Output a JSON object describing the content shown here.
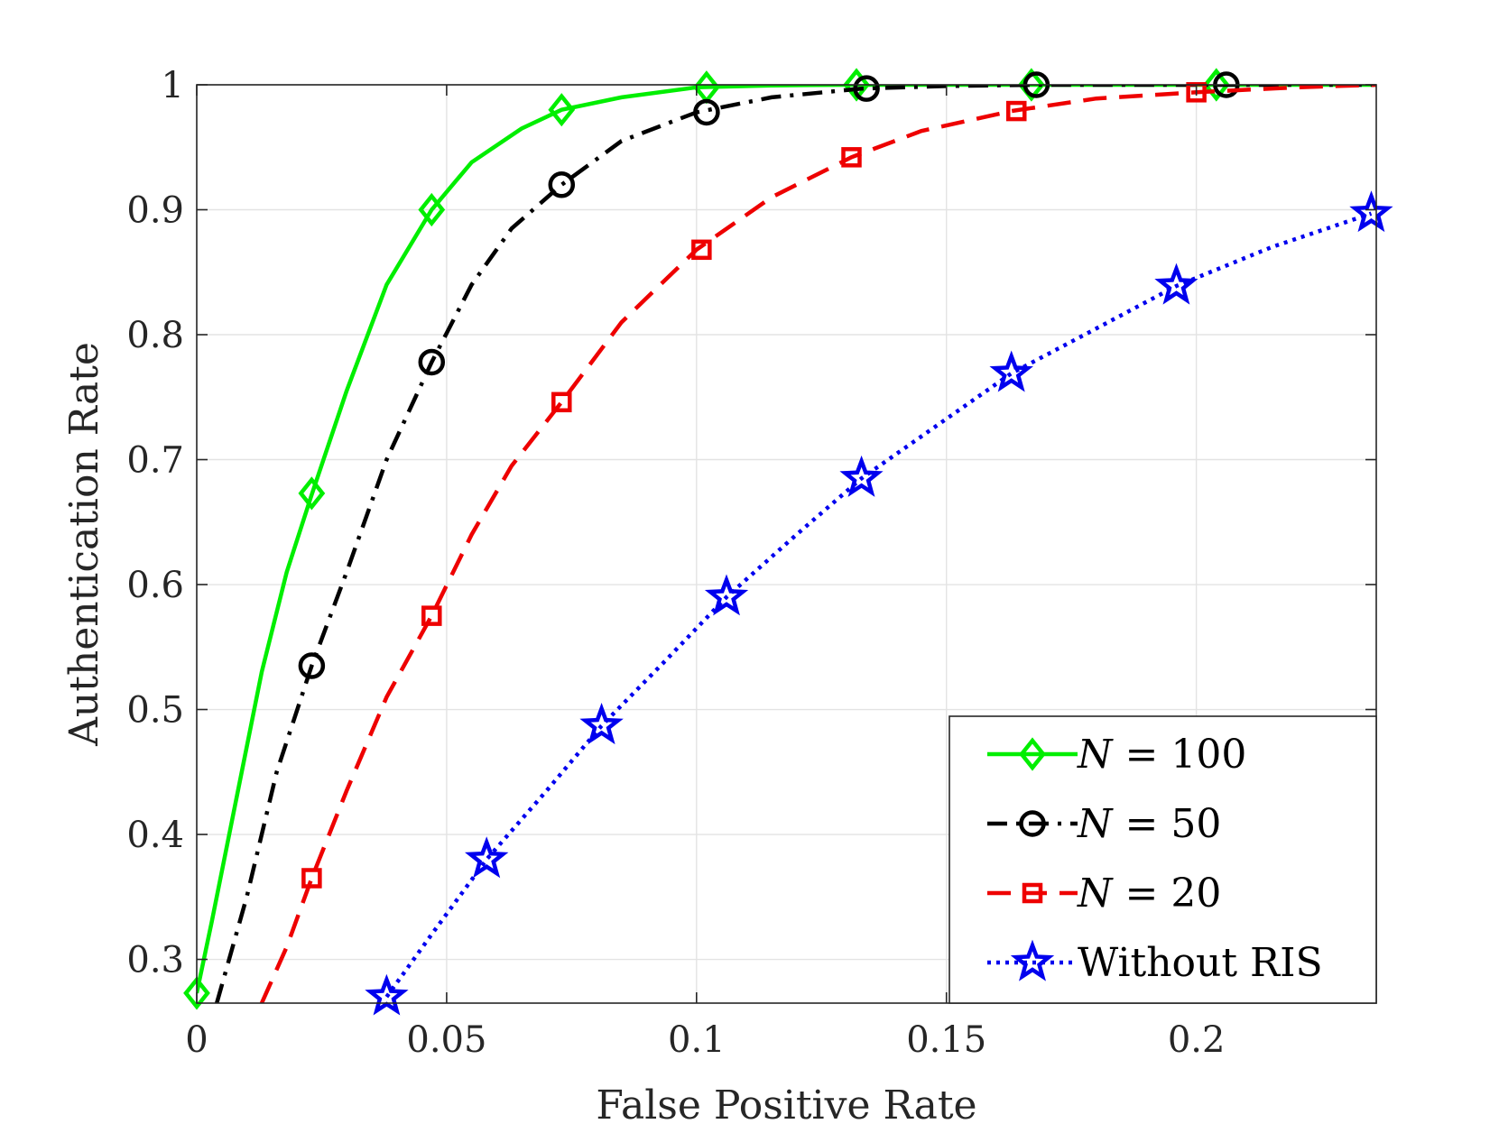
{
  "chart_data": {
    "type": "line",
    "title": "",
    "xlabel": "False Positive Rate",
    "ylabel": "Authentication Rate",
    "xlim": [
      0,
      0.236
    ],
    "ylim": [
      0.265,
      1.0
    ],
    "xticks": [
      0,
      0.05,
      0.1,
      0.15,
      0.2
    ],
    "xtick_labels": [
      "0",
      "0.05",
      "0.1",
      "0.15",
      "0.2"
    ],
    "yticks": [
      0.3,
      0.4,
      0.5,
      0.6,
      0.7,
      0.8,
      0.9,
      1.0
    ],
    "ytick_labels": [
      "0.3",
      "0.4",
      "0.5",
      "0.6",
      "0.7",
      "0.8",
      "0.9",
      "1"
    ],
    "grid": true,
    "legend_position": "bottom-right",
    "series": [
      {
        "name": "N = 100",
        "legend_var": "N",
        "legend_rest": " = 100",
        "color": "#00ee00",
        "dash": "solid",
        "marker": "diamond",
        "curve": {
          "x": [
            0.0,
            0.003,
            0.008,
            0.013,
            0.018,
            0.023,
            0.03,
            0.038,
            0.047,
            0.055,
            0.065,
            0.073,
            0.085,
            0.1,
            0.115,
            0.13,
            0.15,
            0.17,
            0.2,
            0.236
          ],
          "y": [
            0.273,
            0.33,
            0.43,
            0.53,
            0.61,
            0.672,
            0.755,
            0.84,
            0.9,
            0.938,
            0.965,
            0.98,
            0.99,
            0.998,
            0.9995,
            1.0,
            1.0,
            1.0,
            1.0,
            1.0
          ]
        },
        "markers": {
          "x": [
            0.0,
            0.023,
            0.047,
            0.073,
            0.102,
            0.132,
            0.167,
            0.204
          ],
          "y": [
            0.273,
            0.673,
            0.9,
            0.98,
            0.998,
            1.0,
            1.0,
            1.0
          ]
        }
      },
      {
        "name": "N = 50",
        "legend_var": "N",
        "legend_rest": " = 50",
        "color": "#000000",
        "dash": "dash-dot",
        "marker": "circle",
        "curve": {
          "x": [
            0.004,
            0.01,
            0.016,
            0.023,
            0.03,
            0.038,
            0.047,
            0.055,
            0.063,
            0.073,
            0.085,
            0.1,
            0.115,
            0.133,
            0.15,
            0.168,
            0.2,
            0.236
          ],
          "y": [
            0.265,
            0.35,
            0.45,
            0.535,
            0.61,
            0.7,
            0.778,
            0.84,
            0.885,
            0.92,
            0.955,
            0.978,
            0.99,
            0.997,
            0.999,
            1.0,
            1.0,
            1.0
          ]
        },
        "markers": {
          "x": [
            0.023,
            0.047,
            0.073,
            0.102,
            0.134,
            0.168,
            0.206
          ],
          "y": [
            0.535,
            0.778,
            0.92,
            0.978,
            0.997,
            1.0,
            1.0
          ]
        }
      },
      {
        "name": "N = 20",
        "legend_var": "N",
        "legend_rest": " = 20",
        "color": "#ee0000",
        "dash": "dashed",
        "marker": "square",
        "curve": {
          "x": [
            0.013,
            0.018,
            0.023,
            0.03,
            0.038,
            0.047,
            0.055,
            0.063,
            0.073,
            0.085,
            0.1,
            0.115,
            0.131,
            0.145,
            0.163,
            0.18,
            0.2,
            0.22,
            0.236
          ],
          "y": [
            0.265,
            0.31,
            0.365,
            0.435,
            0.51,
            0.575,
            0.64,
            0.695,
            0.746,
            0.81,
            0.868,
            0.91,
            0.942,
            0.963,
            0.979,
            0.989,
            0.994,
            0.998,
            1.0
          ]
        },
        "markers": {
          "x": [
            0.023,
            0.047,
            0.073,
            0.101,
            0.131,
            0.164,
            0.2
          ],
          "y": [
            0.365,
            0.575,
            0.746,
            0.868,
            0.942,
            0.979,
            0.994
          ]
        }
      },
      {
        "name": "Without RIS",
        "legend_var": "",
        "legend_rest": "Without RIS",
        "color": "#0000ee",
        "dash": "dotted",
        "marker": "star",
        "curve": {
          "x": [
            0.038,
            0.047,
            0.058,
            0.07,
            0.081,
            0.094,
            0.106,
            0.12,
            0.133,
            0.148,
            0.163,
            0.18,
            0.196,
            0.215,
            0.235
          ],
          "y": [
            0.27,
            0.32,
            0.38,
            0.435,
            0.487,
            0.54,
            0.59,
            0.64,
            0.685,
            0.727,
            0.769,
            0.805,
            0.839,
            0.87,
            0.897
          ]
        },
        "markers": {
          "x": [
            0.038,
            0.058,
            0.081,
            0.106,
            0.133,
            0.163,
            0.196,
            0.235
          ],
          "y": [
            0.27,
            0.38,
            0.487,
            0.59,
            0.685,
            0.769,
            0.839,
            0.897
          ]
        }
      }
    ]
  }
}
